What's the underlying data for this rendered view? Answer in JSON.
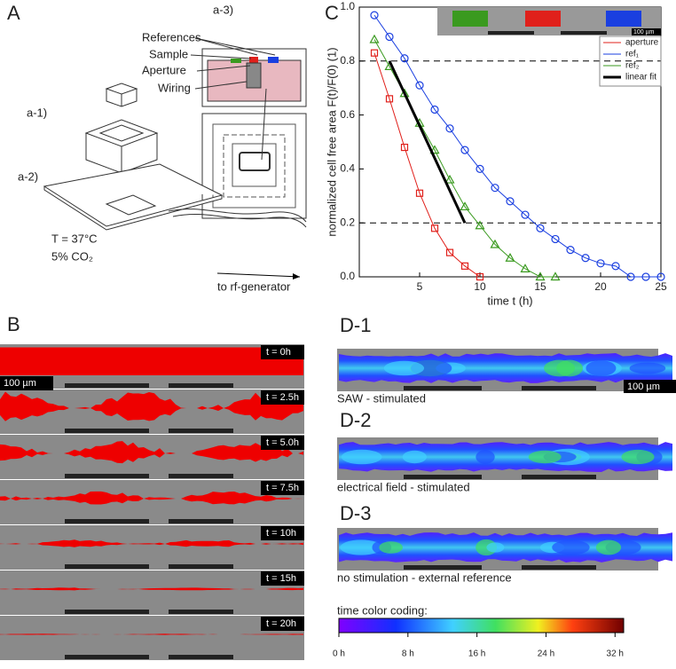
{
  "panels": {
    "A": "A",
    "B": "B",
    "C": "C",
    "D1": "D-1",
    "D2": "D-2",
    "D3": "D-3"
  },
  "diagram": {
    "a3": "a-3)",
    "references": "References",
    "sample": "Sample",
    "aperture": "Aperture",
    "wiring": "Wiring",
    "a1": "a-1)",
    "a2": "a-2)",
    "temperature": "T = 37°C",
    "co2": "5% CO₂",
    "rf": "to rf-generator"
  },
  "scale_bar": "100 µm",
  "timepoints": [
    "t = 0h",
    "t = 2.5h",
    "t = 5.0h",
    "t = 7.5h",
    "t = 10h",
    "t = 15h",
    "t = 20h"
  ],
  "stimulation": [
    "SAW - stimulated",
    "electrical field - stimulated",
    "no stimulation - external reference"
  ],
  "colorbar": {
    "title": "time color coding:",
    "lim": [
      0,
      33
    ],
    "ticks": [
      {
        "value": 0,
        "label": "0 h"
      },
      {
        "value": 8,
        "label": "8 h"
      },
      {
        "value": 16,
        "label": "16 h"
      },
      {
        "value": 24,
        "label": "24 h"
      },
      {
        "value": 32,
        "label": "32 h"
      }
    ]
  },
  "chart_data": {
    "type": "line",
    "xlabel": "time t (h)",
    "ylabel": "normalized cell free area F(t)/F(0) (1)",
    "xlim": [
      0,
      25
    ],
    "xticks": [
      5,
      10,
      15,
      20,
      25
    ],
    "ylim": [
      0,
      1
    ],
    "yticks": [
      {
        "value": 0,
        "label": "0.0"
      },
      0.2,
      0.4,
      0.6,
      0.8,
      {
        "value": 1,
        "label": "1.0"
      }
    ],
    "hlines": [
      0.8,
      0.2
    ],
    "legend": "upper right",
    "series": [
      {
        "name": "aperture",
        "color": "#e0201b",
        "marker": "square",
        "x": [
          1.25,
          2.5,
          3.75,
          5,
          6.25,
          7.5,
          8.75,
          10
        ],
        "values": [
          0.83,
          0.66,
          0.48,
          0.31,
          0.18,
          0.09,
          0.04,
          0
        ]
      },
      {
        "name": "ref₁",
        "color": "#1a3fe0",
        "marker": "circle",
        "x": [
          1.25,
          2.5,
          3.75,
          5,
          6.25,
          7.5,
          8.75,
          10,
          11.25,
          12.5,
          13.75,
          15,
          16.25,
          17.5,
          18.75,
          20,
          21.25,
          22.5,
          23.75,
          25
        ],
        "values": [
          0.97,
          0.89,
          0.81,
          0.71,
          0.62,
          0.55,
          0.47,
          0.4,
          0.33,
          0.28,
          0.23,
          0.18,
          0.14,
          0.1,
          0.07,
          0.05,
          0.04,
          0,
          0,
          0
        ]
      },
      {
        "name": "ref₂",
        "color": "#3a9a1f",
        "marker": "triangle",
        "x": [
          1.25,
          2.5,
          3.75,
          5,
          6.25,
          7.5,
          8.75,
          10,
          11.25,
          12.5,
          13.75,
          15,
          16.25
        ],
        "values": [
          0.88,
          0.78,
          0.68,
          0.57,
          0.47,
          0.36,
          0.26,
          0.19,
          0.12,
          0.07,
          0.03,
          0,
          0
        ]
      },
      {
        "name": "linear fit",
        "color": "#000000",
        "marker": "none",
        "x": [
          2.5,
          8.75
        ],
        "values": [
          0.8,
          0.2
        ]
      }
    ]
  }
}
